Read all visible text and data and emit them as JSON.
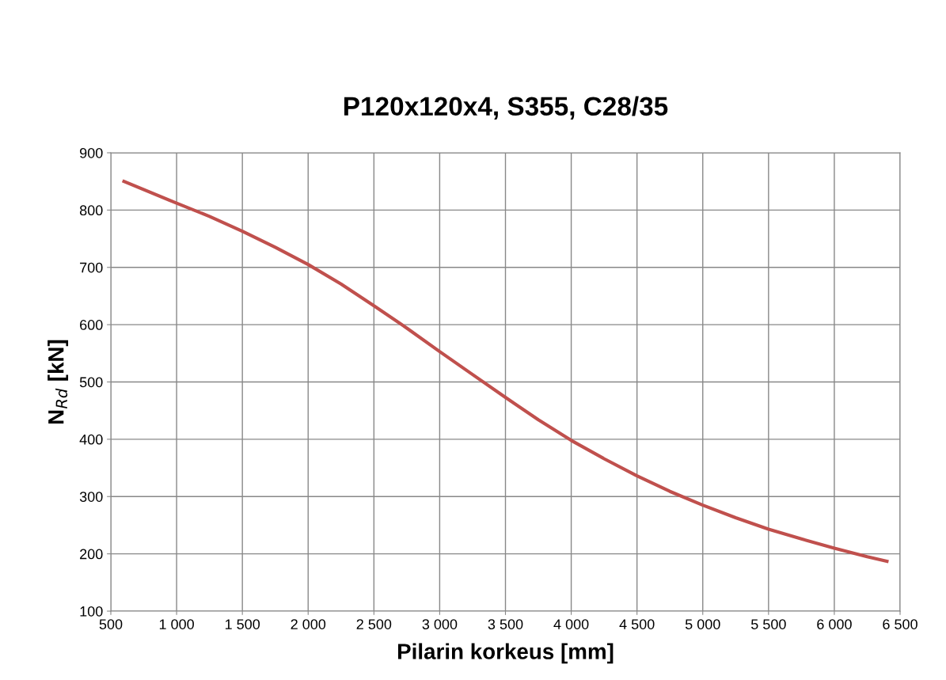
{
  "chart_data": {
    "type": "line",
    "title": "P120x120x4, S355, C28/35",
    "xlabel": "Pilarin korkeus [mm]",
    "ylabel": "N$_{Rd}$ [kN]",
    "series": [
      {
        "color": "#c0504d",
        "x": [
          600,
          1000,
          1250,
          1500,
          1750,
          2000,
          2250,
          2500,
          2750,
          3000,
          3250,
          3500,
          3750,
          4000,
          4250,
          4500,
          4750,
          5000,
          5250,
          5500,
          5750,
          6000,
          6250,
          6400
        ],
        "values": [
          850,
          812,
          789,
          763,
          735,
          705,
          671,
          633,
          594,
          553,
          513,
          473,
          434,
          398,
          366,
          336,
          309,
          285,
          263,
          243,
          226,
          210,
          195,
          187
        ]
      }
    ],
    "xlim": [
      500,
      6500
    ],
    "xticks": [
      500,
      {
        "value": 1000,
        "label": "1 000"
      },
      {
        "value": 1500,
        "label": "1 500"
      },
      {
        "value": 2000,
        "label": "2 000"
      },
      {
        "value": 2500,
        "label": "2 500"
      },
      {
        "value": 3000,
        "label": "3 000"
      },
      {
        "value": 3500,
        "label": "3 500"
      },
      {
        "value": 4000,
        "label": "4 000"
      },
      {
        "value": 4500,
        "label": "4 500"
      },
      {
        "value": 5000,
        "label": "5 000"
      },
      {
        "value": 5500,
        "label": "5 500"
      },
      {
        "value": 6000,
        "label": "6 000"
      },
      {
        "value": 6500,
        "label": "6 500"
      }
    ],
    "ylim": [
      100,
      900
    ],
    "yticks": [
      100,
      200,
      300,
      400,
      500,
      600,
      700,
      800,
      900
    ],
    "grid": true,
    "legend": false,
    "marker": "none",
    "line_style": "solid"
  }
}
